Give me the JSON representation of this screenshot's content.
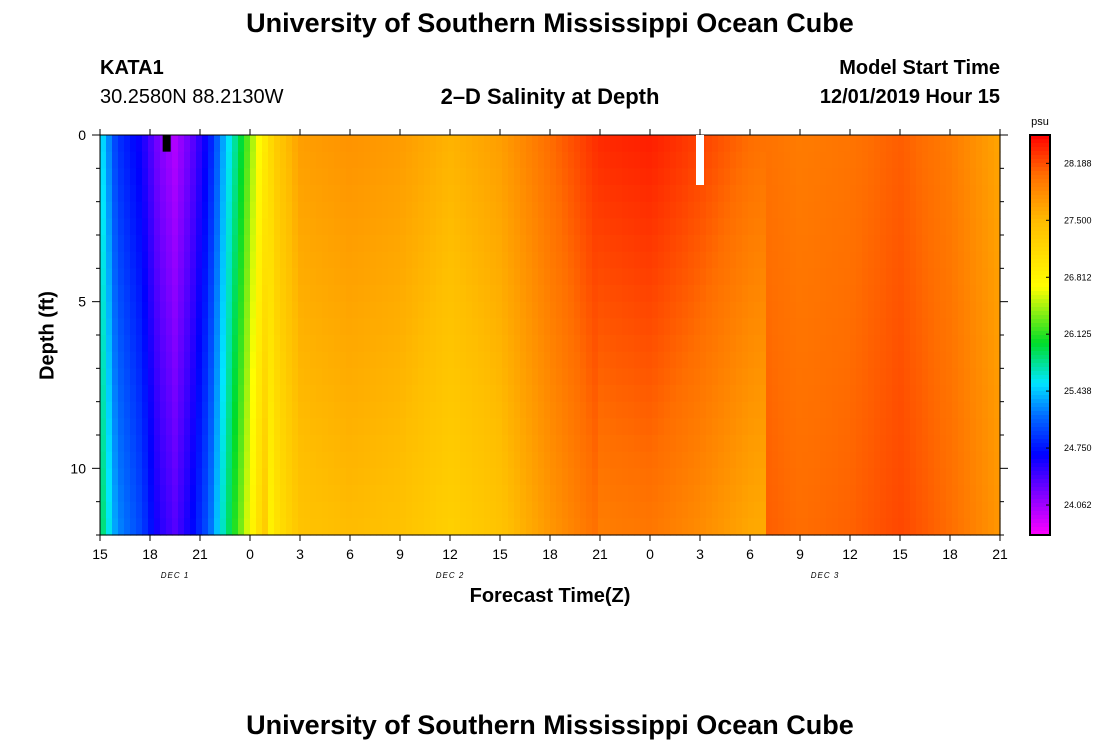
{
  "header": {
    "main_title": "University of Southern Mississippi Ocean Cube",
    "station_id": "KATA1",
    "station_coords": "30.2580N 88.2130W",
    "plot_title": "2–D Salinity at Depth",
    "model_start_label": "Model Start Time",
    "model_start_value": "12/01/2019 Hour 15"
  },
  "footer": {
    "title": "University of Southern Mississippi Ocean Cube"
  },
  "chart_data": {
    "type": "heatmap",
    "title": "2-D Salinity at Depth",
    "xlabel": "Forecast Time(Z)",
    "ylabel": "Depth (ft)",
    "x_ticks": [
      "15",
      "18",
      "21",
      "0",
      "3",
      "6",
      "9",
      "12",
      "15",
      "18",
      "21",
      "0",
      "3",
      "6",
      "9",
      "12",
      "15",
      "18",
      "21"
    ],
    "x_range_hours": [
      0,
      54
    ],
    "date_labels": [
      {
        "text": "DEC 1",
        "hour": 4.5
      },
      {
        "text": "DEC 2",
        "hour": 21
      },
      {
        "text": "DEC 3",
        "hour": 43.5
      }
    ],
    "y_ticks": [
      "0",
      "5",
      "10"
    ],
    "y_range_ft": [
      0,
      12
    ],
    "colorbar": {
      "unit": "psu",
      "min": 23.7,
      "max": 28.53,
      "tick_labels": [
        "28.188",
        "27.500",
        "26.812",
        "26.125",
        "25.438",
        "24.750",
        "24.062"
      ],
      "tick_values": [
        28.188,
        27.5,
        26.812,
        26.125,
        25.438,
        24.75,
        24.062
      ]
    },
    "surface_profile_psu": [
      {
        "hour": 0,
        "value": 25.6
      },
      {
        "hour": 1,
        "value": 24.9
      },
      {
        "hour": 2.5,
        "value": 24.6
      },
      {
        "hour": 3.5,
        "value": 24.2
      },
      {
        "hour": 4.5,
        "value": 24.0
      },
      {
        "hour": 5.5,
        "value": 24.3
      },
      {
        "hour": 6.5,
        "value": 24.7
      },
      {
        "hour": 7.5,
        "value": 25.4
      },
      {
        "hour": 8.5,
        "value": 26.0
      },
      {
        "hour": 9.5,
        "value": 26.7
      },
      {
        "hour": 10.5,
        "value": 27.3
      },
      {
        "hour": 12,
        "value": 27.7
      },
      {
        "hour": 15,
        "value": 27.78
      },
      {
        "hour": 18,
        "value": 27.72
      },
      {
        "hour": 21,
        "value": 27.55
      },
      {
        "hour": 24,
        "value": 27.7
      },
      {
        "hour": 27,
        "value": 28.05
      },
      {
        "hour": 30,
        "value": 28.35
      },
      {
        "hour": 33,
        "value": 28.4
      },
      {
        "hour": 36,
        "value": 28.25
      },
      {
        "hour": 39,
        "value": 28.05
      },
      {
        "hour": 42,
        "value": 27.95
      },
      {
        "hour": 45,
        "value": 28.0
      },
      {
        "hour": 48,
        "value": 28.12
      },
      {
        "hour": 51,
        "value": 27.95
      },
      {
        "hour": 54,
        "value": 27.65
      }
    ],
    "markers": [
      {
        "hour": 4,
        "depth_top": 0,
        "depth_bottom": 0.5,
        "color": "#000000"
      },
      {
        "hour": 36,
        "depth_top": 0,
        "depth_bottom": 1.5,
        "color": "#ffffff"
      }
    ]
  }
}
